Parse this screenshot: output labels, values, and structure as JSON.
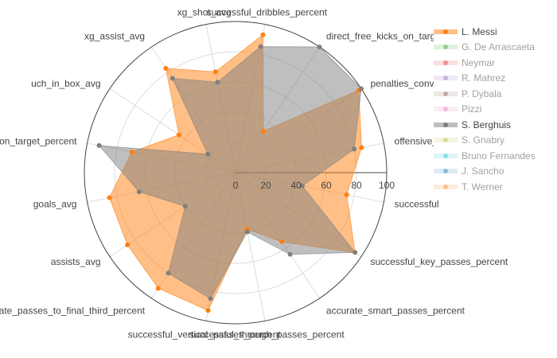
{
  "chart_data": {
    "type": "radar",
    "axes": [
      "successful_dribbles_percent",
      "direct_free_kicks_on_target_percent",
      "penalties_conversion_percent",
      "offensive_duels_won_percent",
      "successful_passes_to_final_third_percent",
      "successful_key_passes_percent",
      "accurate_smart_passes_percent",
      "successful_through_passes_percent",
      "successful_vertical_passes_percent",
      "accurate_passes_to_final_third_percent",
      "assists_avg",
      "goals_avg",
      "shots_on_target_percent",
      "touch_in_box_avg",
      "xg_assist_avg",
      "xg_shot_avg"
    ],
    "axis_labels": [
      "successful_dribbles_percent",
      "direct_free_kicks_on_target_percent",
      "penalties_conversion_percent",
      "offensive_duels_w",
      "successful",
      "successful_key_passes_percent",
      "accurate_smart_passes_percent",
      "successful_through_passes_percent",
      "successful_vertical_passes_percent",
      "accurate_passes_to_final_third_percent",
      "assists_avg",
      "goals_avg",
      "on_target_percent",
      "uch_in_box_avg",
      "xg_assist_avg",
      "xg_shot_avg"
    ],
    "radial_ticks": [
      "0",
      "20",
      "40",
      "60",
      "80",
      "100"
    ],
    "radial_range": [
      0,
      100
    ],
    "grid": true,
    "legend_position": "right",
    "series": [
      {
        "name": "L. Messi",
        "visible": true,
        "color": "#ff7f0e",
        "values": [
          93,
          33,
          98,
          85,
          75,
          95,
          55,
          38,
          93,
          92,
          86,
          85,
          70,
          45,
          83,
          68
        ]
      },
      {
        "name": "S. Berghuis",
        "visible": true,
        "color": "#7f7f7f",
        "values": [
          85,
          100,
          100,
          80,
          45,
          95,
          65,
          40,
          85,
          80,
          40,
          65,
          92,
          22,
          75,
          61
        ]
      },
      {
        "name": "G. De Arrascaeta",
        "visible": false,
        "color": "#2ca02c",
        "values": []
      },
      {
        "name": "Neymar",
        "visible": false,
        "color": "#d62728",
        "values": []
      },
      {
        "name": "R. Mahrez",
        "visible": false,
        "color": "#9467bd",
        "values": []
      },
      {
        "name": "P. Dybala",
        "visible": false,
        "color": "#8c564b",
        "values": []
      },
      {
        "name": "Pizzi",
        "visible": false,
        "color": "#e377c2",
        "values": []
      },
      {
        "name": "S. Gnabry",
        "visible": false,
        "color": "#bcbd22",
        "values": []
      },
      {
        "name": "Bruno Fernandes",
        "visible": false,
        "color": "#17becf",
        "values": []
      },
      {
        "name": "J. Sancho",
        "visible": false,
        "color": "#1f77b4",
        "values": []
      },
      {
        "name": "T. Werner",
        "visible": false,
        "color": "#ff7f0e",
        "values": []
      }
    ]
  },
  "legend": [
    {
      "name": "L. Messi",
      "visible": true,
      "color": "#ff7f0e"
    },
    {
      "name": "G. De Arrascaeta",
      "visible": false,
      "color": "#2ca02c"
    },
    {
      "name": "Neymar",
      "visible": false,
      "color": "#d62728"
    },
    {
      "name": "R. Mahrez",
      "visible": false,
      "color": "#9467bd"
    },
    {
      "name": "P. Dybala",
      "visible": false,
      "color": "#8c564b"
    },
    {
      "name": "Pizzi",
      "visible": false,
      "color": "#e377c2"
    },
    {
      "name": "S. Berghuis",
      "visible": true,
      "color": "#7f7f7f"
    },
    {
      "name": "S. Gnabry",
      "visible": false,
      "color": "#bcbd22"
    },
    {
      "name": "Bruno Fernandes",
      "visible": false,
      "color": "#17becf"
    },
    {
      "name": "J. Sancho",
      "visible": false,
      "color": "#1f77b4"
    },
    {
      "name": "T. Werner",
      "visible": false,
      "color": "#ff7f0e"
    }
  ],
  "right_edge_label": "ss"
}
